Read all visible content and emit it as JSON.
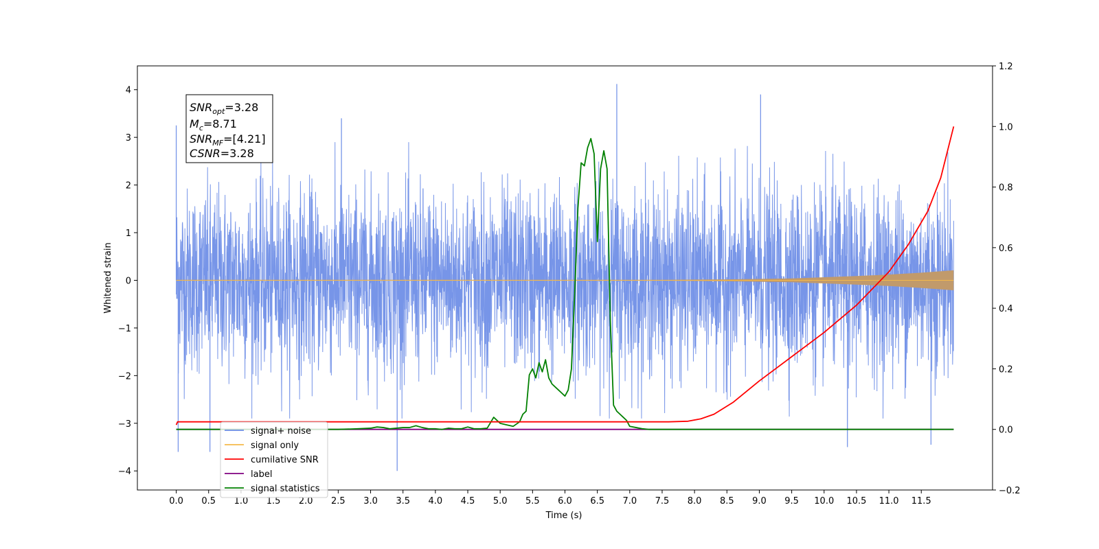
{
  "chart_data": {
    "type": "line",
    "xlabel": "Time (s)",
    "ylabel": "Whitened strain",
    "xlim": [
      -0.6,
      12.6
    ],
    "ylim_left": [
      -4.4,
      4.5
    ],
    "ylim_right": [
      -0.2,
      1.2
    ],
    "x_ticks": [
      "0.0",
      "0.5",
      "1.0",
      "1.5",
      "2.0",
      "2.5",
      "3.0",
      "3.5",
      "4.0",
      "4.5",
      "5.0",
      "5.5",
      "6.0",
      "6.5",
      "7.0",
      "7.5",
      "8.0",
      "8.5",
      "9.0",
      "9.5",
      "10.0",
      "10.5",
      "11.0",
      "11.5"
    ],
    "y_ticks_left": [
      "−4",
      "−3",
      "−2",
      "−1",
      "0",
      "1",
      "2",
      "3",
      "4"
    ],
    "y_ticks_right": [
      "−0.2",
      "0.0",
      "0.2",
      "0.4",
      "0.6",
      "0.8",
      "1.0",
      "1.2"
    ],
    "info_box": {
      "snr_opt": {
        "base": "SNR",
        "sub": "opt",
        "value": "=3.28"
      },
      "mc": {
        "base": "M",
        "sub": "c",
        "value": "=8.71"
      },
      "snr_mf": {
        "base": "SNR",
        "sub": "MF",
        "value": "=[4.21]"
      },
      "csnr": {
        "base": "CSNR",
        "value": "=3.28"
      }
    },
    "legend": {
      "placement": "lower-left",
      "entries": [
        {
          "label": "signal+ noise",
          "color": "#6a8be6"
        },
        {
          "label": "signal only",
          "color": "#f5b94a"
        },
        {
          "label": "cumilative SNR",
          "color": "#ff0000"
        },
        {
          "label": "label",
          "color": "#800080"
        },
        {
          "label": "signal statistics",
          "color": "#008000"
        }
      ]
    },
    "series": [
      {
        "name": "signal+ noise",
        "axis": "left",
        "color": "#7795e8",
        "description_values": {
          "x_start": 0.0,
          "x_end": 12.0,
          "amplitude_std": 1.0,
          "spikes": [
            [
              0.0,
              3.25
            ],
            [
              0.03,
              -3.6
            ],
            [
              0.52,
              -3.6
            ],
            [
              2.55,
              3.4
            ],
            [
              3.41,
              -4.0
            ],
            [
              6.8,
              4.12
            ],
            [
              9.02,
              3.9
            ],
            [
              10.36,
              -3.5
            ],
            [
              11.65,
              -3.45
            ]
          ]
        }
      },
      {
        "name": "signal only",
        "axis": "left",
        "color": "#f5b94a",
        "envelope": [
          [
            0.0,
            0.01
          ],
          [
            7.5,
            0.01
          ],
          [
            8.5,
            0.02
          ],
          [
            9.5,
            0.04
          ],
          [
            10.5,
            0.09
          ],
          [
            11.0,
            0.12
          ],
          [
            11.5,
            0.16
          ],
          [
            12.0,
            0.21
          ]
        ]
      },
      {
        "name": "cumilative SNR",
        "axis": "right",
        "color": "#ff0000",
        "x": [
          0.0,
          0.02,
          7.6,
          7.9,
          8.1,
          8.3,
          8.6,
          9.0,
          9.5,
          10.0,
          10.5,
          11.0,
          11.3,
          11.6,
          11.8,
          12.0
        ],
        "y": [
          0.015,
          0.025,
          0.025,
          0.027,
          0.035,
          0.05,
          0.09,
          0.16,
          0.24,
          0.32,
          0.41,
          0.52,
          0.61,
          0.72,
          0.83,
          1.0
        ]
      },
      {
        "name": "label",
        "axis": "right",
        "color": "#800080",
        "x": [
          0.0,
          12.0
        ],
        "y": [
          0.0,
          0.0
        ]
      },
      {
        "name": "signal statistics",
        "axis": "right",
        "color": "#008000",
        "x": [
          0.0,
          0.5,
          1.0,
          1.5,
          2.0,
          2.5,
          2.8,
          3.0,
          3.1,
          3.2,
          3.3,
          3.4,
          3.5,
          3.6,
          3.7,
          3.8,
          3.9,
          4.0,
          4.1,
          4.2,
          4.3,
          4.4,
          4.5,
          4.6,
          4.7,
          4.8,
          4.9,
          5.0,
          5.1,
          5.2,
          5.3,
          5.35,
          5.4,
          5.45,
          5.5,
          5.55,
          5.6,
          5.65,
          5.7,
          5.75,
          5.8,
          5.85,
          5.9,
          5.95,
          6.0,
          6.05,
          6.1,
          6.15,
          6.2,
          6.25,
          6.3,
          6.35,
          6.4,
          6.45,
          6.5,
          6.55,
          6.6,
          6.65,
          6.7,
          6.75,
          6.8,
          6.85,
          6.9,
          6.95,
          7.0,
          7.1,
          7.2,
          7.3,
          7.5,
          8.0,
          12.0
        ],
        "y": [
          0.0,
          0.0,
          0.0,
          0.0,
          0.0,
          0.0,
          0.002,
          0.004,
          0.008,
          0.006,
          0.002,
          0.004,
          0.006,
          0.006,
          0.012,
          0.006,
          0.002,
          0.002,
          0.0,
          0.004,
          0.002,
          0.002,
          0.008,
          0.002,
          0.002,
          0.004,
          0.04,
          0.02,
          0.015,
          0.01,
          0.025,
          0.05,
          0.06,
          0.18,
          0.2,
          0.17,
          0.22,
          0.19,
          0.23,
          0.17,
          0.15,
          0.14,
          0.13,
          0.12,
          0.11,
          0.13,
          0.2,
          0.45,
          0.73,
          0.88,
          0.87,
          0.93,
          0.96,
          0.91,
          0.62,
          0.86,
          0.92,
          0.86,
          0.36,
          0.08,
          0.06,
          0.05,
          0.04,
          0.03,
          0.01,
          0.006,
          0.002,
          0.0,
          0.0,
          0.0,
          0.0
        ]
      }
    ]
  }
}
